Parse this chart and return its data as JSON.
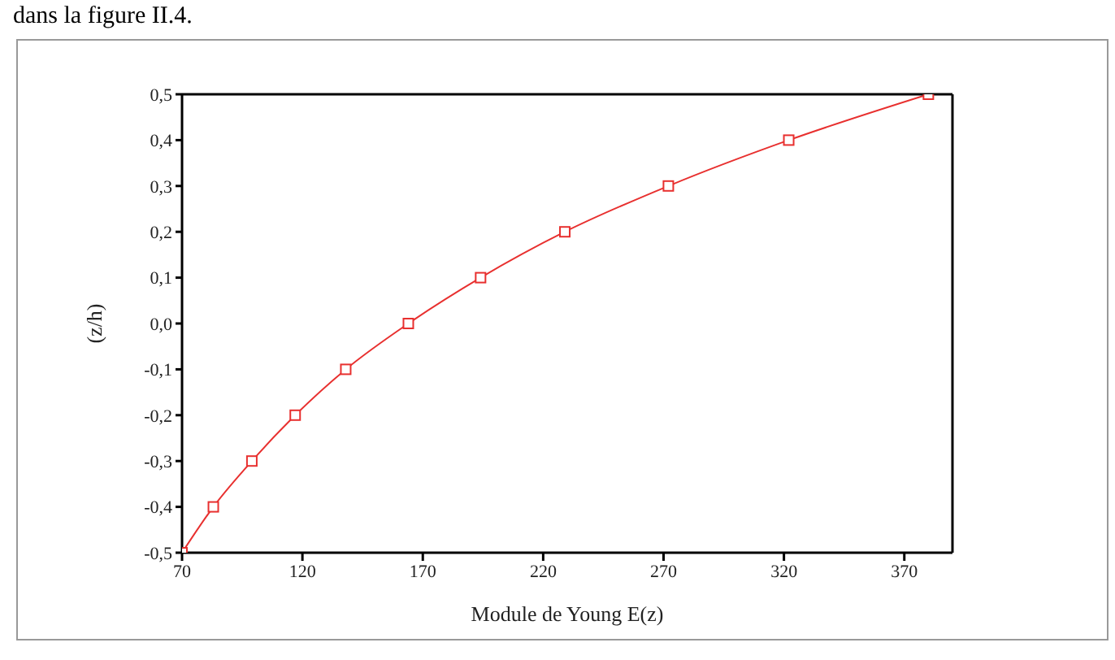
{
  "chart_data": {
    "type": "line",
    "annotations": [
      "dans la figure II.4."
    ],
    "xlabel": "Module de Young E(z)",
    "ylabel": "(z/h)",
    "x": [
      70,
      83,
      99,
      117,
      138,
      164,
      194,
      229,
      272,
      322,
      380
    ],
    "series": [
      {
        "color": "#e8302f",
        "values": [
          -0.5,
          -0.4,
          -0.3,
          -0.2,
          -0.1,
          0.0,
          0.1,
          0.2,
          0.3,
          0.4,
          0.5
        ]
      }
    ],
    "xlim": [
      70,
      390
    ],
    "xticks": [
      70,
      120,
      170,
      220,
      270,
      320,
      370
    ],
    "ylim": [
      -0.5,
      0.5
    ],
    "yticks": [
      {
        "value": -0.5,
        "label": "-0,5"
      },
      {
        "value": -0.4,
        "label": "-0,4"
      },
      {
        "value": -0.3,
        "label": "-0,3"
      },
      {
        "value": -0.2,
        "label": "-0,2"
      },
      {
        "value": -0.1,
        "label": "-0,1"
      },
      {
        "value": 0.0,
        "label": "0,0"
      },
      {
        "value": 0.1,
        "label": "0,1"
      },
      {
        "value": 0.2,
        "label": "0,2"
      },
      {
        "value": 0.3,
        "label": "0,3"
      },
      {
        "value": 0.4,
        "label": "0,4"
      },
      {
        "value": 0.5,
        "label": "0,5"
      }
    ],
    "grid": false,
    "legend": false,
    "marker": "square",
    "line_style": "solid"
  }
}
